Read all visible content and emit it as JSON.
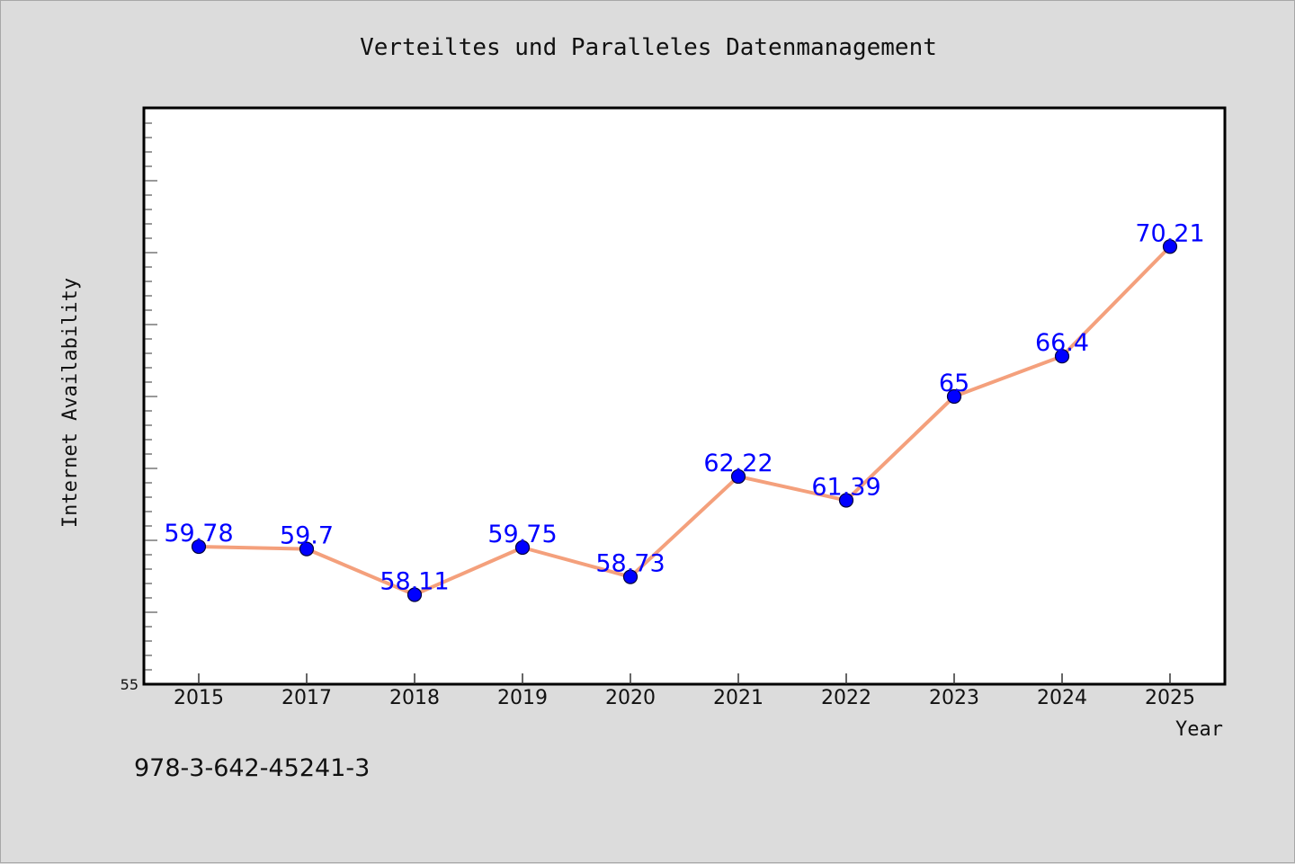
{
  "isbn_text": "978-3-642-45241-3",
  "chart_data": {
    "type": "line",
    "title": "Verteiltes und Paralleles Datenmanagement",
    "xlabel": "Year",
    "ylabel": "Internet Availability",
    "categories": [
      "2015",
      "2017",
      "2018",
      "2019",
      "2020",
      "2021",
      "2022",
      "2023",
      "2024",
      "2025"
    ],
    "series": [
      {
        "values": [
          59.78,
          59.7,
          58.11,
          59.75,
          58.73,
          62.22,
          61.39,
          65,
          66.4,
          70.21
        ],
        "data_labels": [
          "59.78",
          "59.7",
          "58.11",
          "59.75",
          "58.73",
          "62.22",
          "61.39",
          "65",
          "66.4",
          "70.21"
        ]
      }
    ],
    "ylim": [
      55,
      75
    ],
    "y_tick_labels": [
      "55"
    ],
    "grid": false,
    "legend": "none",
    "colors": {
      "line": "#f4a07c",
      "marker": "#0000ff",
      "data_label": "#0000ff",
      "background": "#dcdcdc",
      "plot_background": "#ffffff"
    }
  }
}
